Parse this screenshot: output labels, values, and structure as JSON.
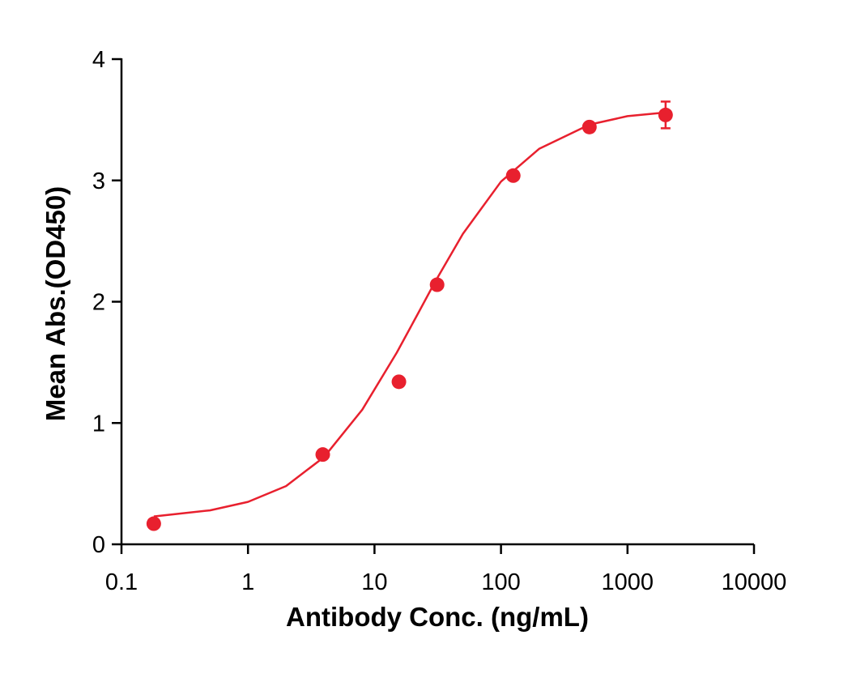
{
  "chart_data": {
    "type": "scatter",
    "xlabel": "Antibody Conc. (ng/mL)",
    "ylabel": "Mean Abs.(OD450)",
    "xscale": "log",
    "xlim": [
      0.1,
      10000
    ],
    "xticks": [
      0.1,
      1,
      10,
      100,
      1000,
      10000
    ],
    "ylim": [
      0,
      4
    ],
    "yticks": [
      0,
      1,
      2,
      3,
      4
    ],
    "series": [
      {
        "color": "#e8202e",
        "x": [
          0.18,
          3.9,
          15.6,
          31.25,
          125,
          500,
          2000
        ],
        "values": [
          0.17,
          0.74,
          1.34,
          2.14,
          3.04,
          3.44,
          3.54
        ],
        "errors": [
          null,
          null,
          null,
          null,
          null,
          null,
          0.11
        ]
      }
    ],
    "fit": {
      "color": "#e8202e",
      "x": [
        0.18,
        0.5,
        1,
        2,
        4,
        8,
        15,
        22,
        30,
        50,
        100,
        200,
        500,
        1000,
        2000
      ],
      "values": [
        0.23,
        0.28,
        0.35,
        0.48,
        0.72,
        1.11,
        1.58,
        1.9,
        2.16,
        2.56,
        2.99,
        3.26,
        3.46,
        3.53,
        3.56
      ]
    }
  }
}
